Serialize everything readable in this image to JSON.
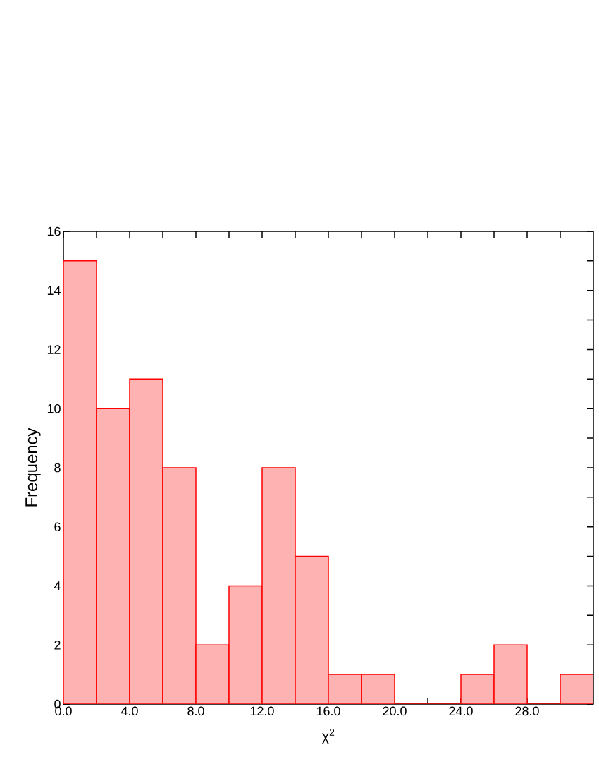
{
  "chart_data": {
    "type": "histogram",
    "xlabel": "χ$^{2}$",
    "ylabel": "Frequency",
    "bins": [
      0,
      2,
      4,
      6,
      8,
      10,
      12,
      14,
      16,
      18,
      20,
      22,
      24,
      26,
      28,
      30,
      32
    ],
    "values": [
      15,
      10,
      11,
      8,
      2,
      4,
      8,
      5,
      1,
      1,
      0,
      0,
      1,
      2,
      0,
      1
    ],
    "color": "#ff0000",
    "xlim": [
      0,
      32
    ],
    "ylim": [
      0,
      16
    ],
    "xticks": [
      {
        "value": 0,
        "label": "0.0"
      },
      {
        "value": 2,
        "label": null
      },
      {
        "value": 4,
        "label": "4.0"
      },
      {
        "value": 6,
        "label": null
      },
      {
        "value": 8,
        "label": "8.0"
      },
      {
        "value": 10,
        "label": null
      },
      {
        "value": 12,
        "label": "12.0"
      },
      {
        "value": 14,
        "label": null
      },
      {
        "value": 16,
        "label": "16.0"
      },
      {
        "value": 18,
        "label": null
      },
      {
        "value": 20,
        "label": "20.0"
      },
      {
        "value": 22,
        "label": null
      },
      {
        "value": 24,
        "label": "24.0"
      },
      {
        "value": 26,
        "label": null
      },
      {
        "value": 28,
        "label": "28.0"
      },
      {
        "value": 30,
        "label": null
      }
    ],
    "yticks": [
      0,
      {
        "value": 1,
        "label": null
      },
      2,
      {
        "value": 3,
        "label": null
      },
      4,
      {
        "value": 5,
        "label": null
      },
      6,
      {
        "value": 7,
        "label": null
      },
      8,
      {
        "value": 9,
        "label": null
      },
      10,
      {
        "value": 11,
        "label": null
      },
      12,
      {
        "value": 13,
        "label": null
      },
      14,
      {
        "value": 15,
        "label": null
      },
      16
    ],
    "grid": false
  }
}
